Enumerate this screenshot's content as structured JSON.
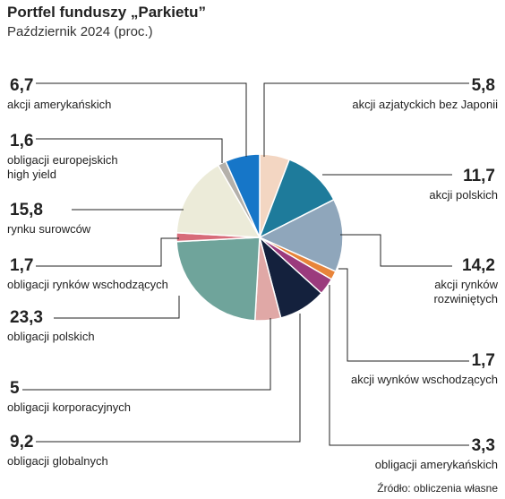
{
  "chart_data": {
    "type": "pie",
    "title": "Portfel funduszy „Parkietu”",
    "subtitle": "Październik 2024 (proc.)",
    "source": "Źródło: obliczenia własne",
    "categories": [
      "akcji azjatyckich bez Japonii",
      "akcji polskich",
      "akcji rynków rozwiniętych",
      "akcji wynków wschodzących",
      "obligacji amerykańskich",
      "obligacji globalnych",
      "obligacji korporacyjnych",
      "obligacji polskich",
      "obligacji rynków wschodzących",
      "rynku surowców",
      "obligacji europejskich high yield",
      "akcji amerykańskich"
    ],
    "values": [
      5.8,
      11.7,
      14.2,
      1.7,
      3.3,
      9.2,
      5,
      23.3,
      1.7,
      15.8,
      1.6,
      6.7
    ],
    "value_labels": [
      "5,8",
      "11,7",
      "14,2",
      "1,7",
      "3,3",
      "9,2",
      "5",
      "23,3",
      "1,7",
      "15,8",
      "1,6",
      "6,7"
    ],
    "colors": [
      "#f3d6c2",
      "#1e7b9b",
      "#8fa6bb",
      "#e8843a",
      "#9b3b7d",
      "#14213d",
      "#e0a8a6",
      "#6fa49b",
      "#d76b79",
      "#ecebd9",
      "#b4b0aa",
      "#1676c8"
    ]
  }
}
